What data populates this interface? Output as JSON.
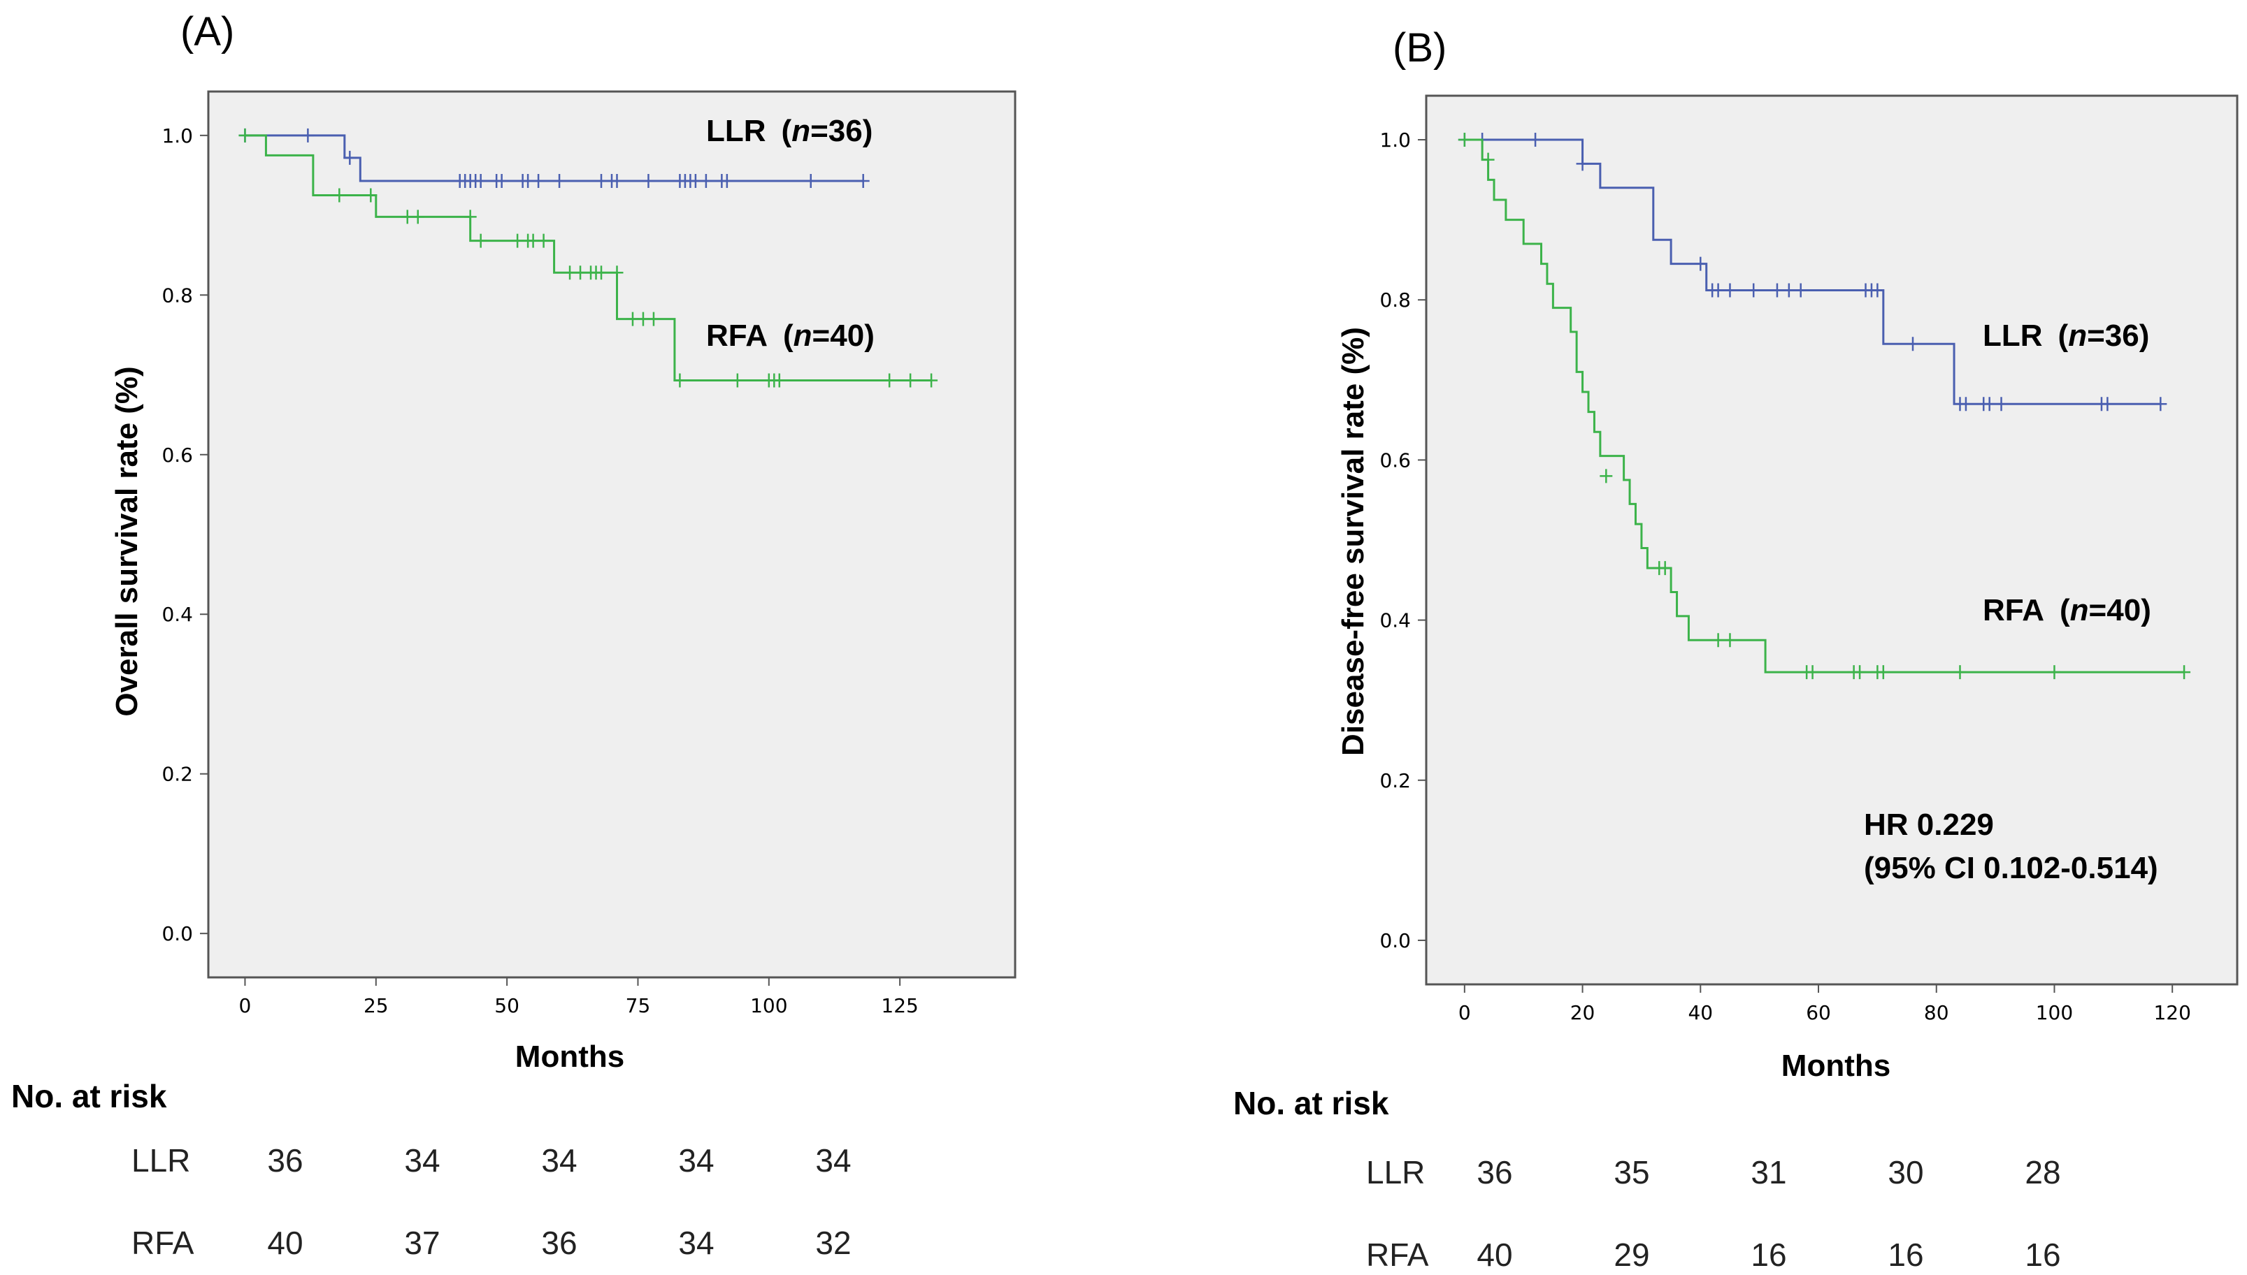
{
  "chart_data": [
    {
      "type": "line",
      "panel_label": "(A)",
      "xlabel": "Months",
      "ylabel": "Overall survival rate (%)",
      "xlim": [
        -7,
        147
      ],
      "ylim": [
        -0.055,
        1.055
      ],
      "xticks": [
        0,
        25,
        50,
        75,
        100,
        125
      ],
      "xtick_labels": [
        "0",
        "25",
        "50",
        "75",
        "100",
        "125"
      ],
      "yticks": [
        0.0,
        0.2,
        0.4,
        0.6,
        0.8,
        1.0
      ],
      "ytick_labels": [
        "0.0",
        "0.2",
        "0.4",
        "0.6",
        "0.8",
        "1.0"
      ],
      "series": [
        {
          "name": "LLR",
          "label_text": "LLR",
          "label_n": "36",
          "color": "#4a5fb0",
          "steps": [
            [
              0,
              1.0
            ],
            [
              19,
              0.972
            ],
            [
              22,
              0.943
            ],
            [
              118,
              0.943
            ]
          ],
          "censors": [
            [
              0,
              1.0
            ],
            [
              12,
              1.0
            ],
            [
              20,
              0.972
            ],
            [
              41,
              0.943
            ],
            [
              42,
              0.943
            ],
            [
              43,
              0.943
            ],
            [
              44,
              0.943
            ],
            [
              45,
              0.943
            ],
            [
              48,
              0.943
            ],
            [
              49,
              0.943
            ],
            [
              53,
              0.943
            ],
            [
              54,
              0.943
            ],
            [
              56,
              0.943
            ],
            [
              60,
              0.943
            ],
            [
              68,
              0.943
            ],
            [
              70,
              0.943
            ],
            [
              71,
              0.943
            ],
            [
              77,
              0.943
            ],
            [
              83,
              0.943
            ],
            [
              84,
              0.943
            ],
            [
              85,
              0.943
            ],
            [
              86,
              0.943
            ],
            [
              88,
              0.943
            ],
            [
              91,
              0.943
            ],
            [
              92,
              0.943
            ],
            [
              108,
              0.943
            ],
            [
              118,
              0.943
            ]
          ]
        },
        {
          "name": "RFA",
          "label_text": "RFA",
          "label_n": "40",
          "color": "#3cb34a",
          "steps": [
            [
              0,
              1.0
            ],
            [
              4,
              0.975
            ],
            [
              13,
              0.925
            ],
            [
              25,
              0.898
            ],
            [
              43,
              0.868
            ],
            [
              59,
              0.828
            ],
            [
              71,
              0.77
            ],
            [
              82,
              0.693
            ],
            [
              131,
              0.693
            ]
          ],
          "censors": [
            [
              0,
              1.0
            ],
            [
              18,
              0.925
            ],
            [
              24,
              0.925
            ],
            [
              31,
              0.898
            ],
            [
              33,
              0.898
            ],
            [
              43,
              0.898
            ],
            [
              45,
              0.868
            ],
            [
              52,
              0.868
            ],
            [
              54,
              0.868
            ],
            [
              55,
              0.868
            ],
            [
              57,
              0.868
            ],
            [
              62,
              0.828
            ],
            [
              64,
              0.828
            ],
            [
              66,
              0.828
            ],
            [
              67,
              0.828
            ],
            [
              68,
              0.828
            ],
            [
              71,
              0.828
            ],
            [
              74,
              0.77
            ],
            [
              76,
              0.77
            ],
            [
              78,
              0.77
            ],
            [
              83,
              0.693
            ],
            [
              94,
              0.693
            ],
            [
              100,
              0.693
            ],
            [
              101,
              0.693
            ],
            [
              102,
              0.693
            ],
            [
              123,
              0.693
            ],
            [
              127,
              0.693
            ],
            [
              131,
              0.693
            ]
          ]
        }
      ],
      "annotations": [],
      "risk_table": {
        "title": "No. at risk",
        "rows": [
          {
            "label": "LLR",
            "values": [
              "36",
              "34",
              "34",
              "34",
              "34"
            ]
          },
          {
            "label": "RFA",
            "values": [
              "40",
              "37",
              "36",
              "34",
              "32"
            ]
          }
        ]
      }
    },
    {
      "type": "line",
      "panel_label": "(B)",
      "xlabel": "Months",
      "ylabel": "Disease-free survival rate (%)",
      "xlim": [
        -6.5,
        131
      ],
      "ylim": [
        -0.055,
        1.055
      ],
      "xticks": [
        0,
        20,
        40,
        60,
        80,
        100,
        120
      ],
      "xtick_labels": [
        "0",
        "20",
        "40",
        "60",
        "80",
        "100",
        "120"
      ],
      "yticks": [
        0.0,
        0.2,
        0.4,
        0.6,
        0.8,
        1.0
      ],
      "ytick_labels": [
        "0.0",
        "0.2",
        "0.4",
        "0.6",
        "0.8",
        "1.0"
      ],
      "series": [
        {
          "name": "LLR",
          "label_text": "LLR",
          "label_n": "36",
          "color": "#4a5fb0",
          "steps": [
            [
              0,
              1.0
            ],
            [
              20,
              0.97
            ],
            [
              23,
              0.94
            ],
            [
              32,
              0.875
            ],
            [
              35,
              0.845
            ],
            [
              41,
              0.812
            ],
            [
              71,
              0.745
            ],
            [
              83,
              0.67
            ],
            [
              118,
              0.67
            ]
          ],
          "censors": [
            [
              0,
              1.0
            ],
            [
              3,
              1.0
            ],
            [
              12,
              1.0
            ],
            [
              20,
              0.97
            ],
            [
              40,
              0.845
            ],
            [
              42,
              0.812
            ],
            [
              43,
              0.812
            ],
            [
              45,
              0.812
            ],
            [
              49,
              0.812
            ],
            [
              53,
              0.812
            ],
            [
              55,
              0.812
            ],
            [
              57,
              0.812
            ],
            [
              68,
              0.812
            ],
            [
              69,
              0.812
            ],
            [
              70,
              0.812
            ],
            [
              76,
              0.745
            ],
            [
              84,
              0.67
            ],
            [
              85,
              0.67
            ],
            [
              88,
              0.67
            ],
            [
              89,
              0.67
            ],
            [
              91,
              0.67
            ],
            [
              108,
              0.67
            ],
            [
              109,
              0.67
            ],
            [
              118,
              0.67
            ]
          ]
        },
        {
          "name": "RFA",
          "label_text": "RFA",
          "label_n": "40",
          "color": "#3cb34a",
          "steps": [
            [
              0,
              1.0
            ],
            [
              3,
              0.975
            ],
            [
              4,
              0.95
            ],
            [
              5,
              0.925
            ],
            [
              7,
              0.9
            ],
            [
              10,
              0.87
            ],
            [
              13,
              0.845
            ],
            [
              14,
              0.82
            ],
            [
              15,
              0.79
            ],
            [
              18,
              0.76
            ],
            [
              19,
              0.71
            ],
            [
              20,
              0.685
            ],
            [
              21,
              0.66
            ],
            [
              22,
              0.635
            ],
            [
              23,
              0.605
            ],
            [
              27,
              0.575
            ],
            [
              28,
              0.545
            ],
            [
              29,
              0.52
            ],
            [
              30,
              0.49
            ],
            [
              31,
              0.465
            ],
            [
              35,
              0.435
            ],
            [
              36,
              0.405
            ],
            [
              38,
              0.375
            ],
            [
              51,
              0.335
            ],
            [
              122,
              0.335
            ]
          ],
          "censors": [
            [
              0,
              1.0
            ],
            [
              4,
              0.975
            ],
            [
              24,
              0.58
            ],
            [
              33,
              0.465
            ],
            [
              34,
              0.465
            ],
            [
              43,
              0.375
            ],
            [
              45,
              0.375
            ],
            [
              58,
              0.335
            ],
            [
              59,
              0.335
            ],
            [
              66,
              0.335
            ],
            [
              67,
              0.335
            ],
            [
              70,
              0.335
            ],
            [
              71,
              0.335
            ],
            [
              84,
              0.335
            ],
            [
              100,
              0.335
            ],
            [
              122,
              0.335
            ]
          ]
        }
      ],
      "annotations": [
        "HR 0.229",
        "(95% CI 0.102-0.514)"
      ],
      "risk_table": {
        "title": "No. at risk",
        "rows": [
          {
            "label": "LLR",
            "values": [
              "36",
              "35",
              "31",
              "30",
              "28"
            ]
          },
          {
            "label": "RFA",
            "values": [
              "40",
              "29",
              "16",
              "16",
              "16"
            ]
          }
        ]
      }
    }
  ],
  "colors": {
    "plot_background": "#efefef",
    "frame": "#555555",
    "llr": "#4a5fb0",
    "rfa": "#3cb34a"
  }
}
